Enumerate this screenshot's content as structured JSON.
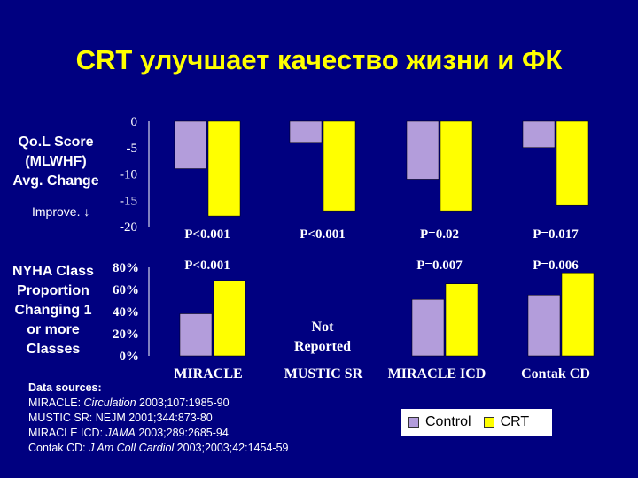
{
  "title": "CRT улучшает качество жизни и ФК",
  "qol_label": [
    "Qo.L Score",
    "(MLWHF)",
    "Avg. Change"
  ],
  "improve_label": "Improve. ↓",
  "nyha_label": [
    "NYHA Class",
    "Proportion",
    "Changing 1",
    "or more",
    "Classes"
  ],
  "colors": {
    "background": "#000080",
    "title": "#ffff00",
    "control": "#b39ddb",
    "crt": "#ffff00"
  },
  "legend": {
    "control": "Control",
    "crt": "CRT"
  },
  "sources": {
    "heading": "Data sources:",
    "lines": [
      {
        "name": "MIRACLE: ",
        "journal": "Circulation",
        "ref": " 2003;107:1985-90"
      },
      {
        "name": "MUSTIC SR: ",
        "journal": "NEJM",
        "ref": " 2001;344:873-80"
      },
      {
        "name": "MIRACLE ICD: ",
        "journal": "JAMA",
        "ref": " 2003;289:2685-94"
      },
      {
        "name": "Contak CD: ",
        "journal": "J Am Coll Cardiol",
        "ref": " 2003;2003;42:1454-59"
      }
    ]
  },
  "chart_data": [
    {
      "type": "bar",
      "categories": [
        "MIRACLE",
        "MUSTIC SR",
        "MIRACLE ICD",
        "Contak CD"
      ],
      "series": [
        {
          "name": "Control",
          "values": [
            -9,
            -4,
            -11,
            -5
          ]
        },
        {
          "name": "CRT",
          "values": [
            -18,
            -17,
            -17,
            -16
          ]
        }
      ],
      "ylim": [
        -20,
        0
      ],
      "yticks": [
        "0",
        "-5",
        "-10",
        "-15",
        "-20"
      ],
      "p_values": [
        "P<0.001",
        "P<0.001",
        "P=0.02",
        "P=0.017"
      ]
    },
    {
      "type": "bar",
      "categories": [
        "MIRACLE",
        "MUSTIC SR",
        "MIRACLE ICD",
        "Contak CD"
      ],
      "series": [
        {
          "name": "Control",
          "values": [
            38,
            null,
            51,
            55
          ]
        },
        {
          "name": "CRT",
          "values": [
            68,
            null,
            65,
            75
          ]
        }
      ],
      "ylim": [
        0,
        80
      ],
      "yticks": [
        "80%",
        "60%",
        "40%",
        "20%",
        "0%"
      ],
      "p_values": [
        "P<0.001",
        "",
        "P=0.007",
        "P=0.006"
      ],
      "note": "Not Reported"
    }
  ]
}
